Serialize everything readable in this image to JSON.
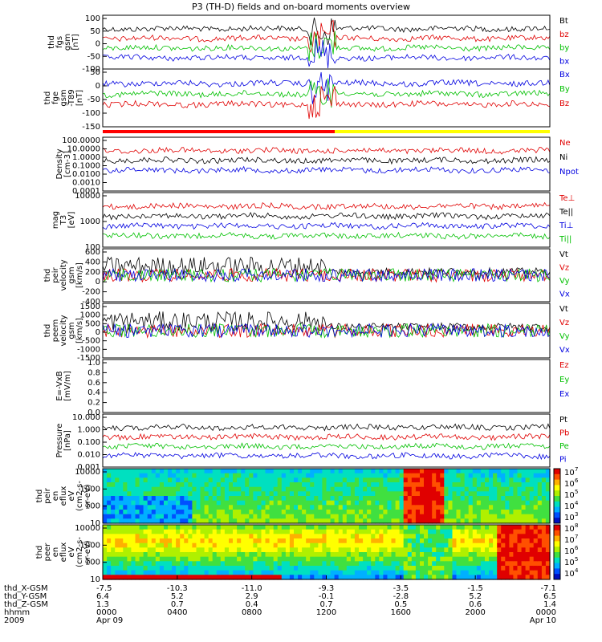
{
  "title": "P3 (TH-D) fields and on-board moments overview",
  "chart_data": {
    "type": "line",
    "x_axis": {
      "ticks": [
        {
          "time": "00:00",
          "x_gsm": "-7.5",
          "y_gsm": "6.4",
          "z_gsm": "1.3",
          "hhmm": "0000",
          "date": "Apr 09"
        },
        {
          "time": "04:00",
          "x_gsm": "-10.3",
          "y_gsm": "5.2",
          "z_gsm": "0.7",
          "hhmm": "0400",
          "date": ""
        },
        {
          "time": "08:00",
          "x_gsm": "-11.0",
          "y_gsm": "2.9",
          "z_gsm": "0.4",
          "hhmm": "0800",
          "date": ""
        },
        {
          "time": "12:00",
          "x_gsm": "-9.3",
          "y_gsm": "-0.1",
          "z_gsm": "0.7",
          "hhmm": "1200",
          "date": ""
        },
        {
          "time": "16:00",
          "x_gsm": "-3.5",
          "y_gsm": "-2.8",
          "z_gsm": "0.5",
          "hhmm": "1600",
          "date": ""
        },
        {
          "time": "20:00",
          "x_gsm": "-1.5",
          "y_gsm": "5.2",
          "z_gsm": "0.6",
          "hhmm": "2000",
          "date": ""
        },
        {
          "time": "24:00",
          "x_gsm": "-7.1",
          "y_gsm": "6.5",
          "z_gsm": "1.4",
          "hhmm": "0000",
          "date": "Apr 10"
        }
      ],
      "row_labels": [
        "thd_X-GSM",
        "thd_Y-GSM",
        "thd_Z-GSM",
        "hhmm",
        "2009"
      ]
    },
    "panels": [
      {
        "id": "fgs",
        "ylabel": [
          "thd",
          "fgs",
          "gsm",
          "[nT]"
        ],
        "yticks": [
          "100",
          "50",
          "0",
          "-50",
          "-100"
        ],
        "ylim": [
          -100,
          100
        ],
        "series": [
          {
            "name": "Bt",
            "color": "#000000"
          },
          {
            "name": "bz",
            "color": "#e00000"
          },
          {
            "name": "by",
            "color": "#00c000"
          },
          {
            "name": "bx",
            "color": "#0000e0"
          }
        ]
      },
      {
        "id": "fge",
        "ylabel": [
          "thd",
          "fge",
          "gsm",
          "-T89",
          "[nT]"
        ],
        "yticks": [
          "50",
          "0",
          "-50",
          "-100",
          "-150"
        ],
        "ylim": [
          -175,
          75
        ],
        "series": [
          {
            "name": "Bx",
            "color": "#0000e0"
          },
          {
            "name": "By",
            "color": "#00c000"
          },
          {
            "name": "Bz",
            "color": "#e00000"
          }
        ]
      },
      {
        "id": "density",
        "ylabel": [
          "Density",
          "[cm-3]"
        ],
        "yticks": [
          "100.0000",
          "10.0000",
          "1.0000",
          "0.1000",
          "0.0100",
          "0.0010",
          "0.0001"
        ],
        "scale": "log",
        "series": [
          {
            "name": "Ne",
            "color": "#e00000"
          },
          {
            "name": "Ni",
            "color": "#000000"
          },
          {
            "name": "Npot",
            "color": "#0000e0"
          }
        ]
      },
      {
        "id": "temp",
        "ylabel": [
          "mag",
          "T3",
          "[eV]"
        ],
        "yticks": [
          "10000",
          "1000",
          "100"
        ],
        "scale": "log",
        "series": [
          {
            "name": "Te⊥",
            "color": "#e00000"
          },
          {
            "name": "Te||",
            "color": "#000000"
          },
          {
            "name": "Ti⊥",
            "color": "#0000e0"
          },
          {
            "name": "Ti||",
            "color": "#00c000"
          }
        ]
      },
      {
        "id": "peir_vel",
        "ylabel": [
          "thd",
          "peir",
          "velocity",
          "gsm",
          "[km/s]"
        ],
        "yticks": [
          "600",
          "400",
          "200",
          "0",
          "-200",
          "-400"
        ],
        "ylim": [
          -400,
          600
        ],
        "series": [
          {
            "name": "Vt",
            "color": "#000000"
          },
          {
            "name": "Vz",
            "color": "#e00000"
          },
          {
            "name": "Vy",
            "color": "#00c000"
          },
          {
            "name": "Vx",
            "color": "#0000e0"
          }
        ]
      },
      {
        "id": "peem_vel",
        "ylabel": [
          "thd",
          "peem",
          "velocity",
          "gsm",
          "[km/s]"
        ],
        "yticks": [
          "1500",
          "1000",
          "500",
          "0",
          "-500",
          "-1000",
          "-1500"
        ],
        "ylim": [
          -1500,
          1500
        ],
        "series": [
          {
            "name": "Vt",
            "color": "#000000"
          },
          {
            "name": "Vz",
            "color": "#e00000"
          },
          {
            "name": "Vy",
            "color": "#00c000"
          },
          {
            "name": "Vx",
            "color": "#0000e0"
          }
        ]
      },
      {
        "id": "efield",
        "ylabel": [
          "E=-VxB",
          "[mV/m]"
        ],
        "yticks": [
          "1.0",
          "0.8",
          "0.6",
          "0.4",
          "0.2",
          "0.0"
        ],
        "ylim": [
          0,
          1
        ],
        "series": [
          {
            "name": "Ez",
            "color": "#e00000"
          },
          {
            "name": "Ey",
            "color": "#00c000"
          },
          {
            "name": "Ex",
            "color": "#0000e0"
          }
        ]
      },
      {
        "id": "pressure",
        "ylabel": [
          "Pressure",
          "[nPa]"
        ],
        "yticks": [
          "10.000",
          "1.000",
          "0.100",
          "0.010",
          "0.001"
        ],
        "scale": "log",
        "series": [
          {
            "name": "Pt",
            "color": "#000000"
          },
          {
            "name": "Pb",
            "color": "#e00000"
          },
          {
            "name": "Pe",
            "color": "#00c000"
          },
          {
            "name": "Pi",
            "color": "#0000e0"
          }
        ]
      },
      {
        "id": "peir_spec",
        "type": "heatmap",
        "ylabel": [
          "thd",
          "peir",
          "en",
          "eflux",
          "eV",
          "(cm2-s-",
          "sr-eV)"
        ],
        "yticks": [
          "10000",
          "1000",
          "100",
          "10"
        ],
        "colorbar": [
          "10",
          "10",
          "10",
          "10",
          "10"
        ],
        "colorbar_exp": [
          "7",
          "6",
          "5",
          "4",
          "3"
        ]
      },
      {
        "id": "peer_spec",
        "type": "heatmap",
        "ylabel": [
          "thd",
          "peer",
          "en",
          "eflux",
          "eV",
          "(cm2-s-",
          "sr-eV)"
        ],
        "yticks": [
          "10000",
          "1000",
          "100",
          "10"
        ],
        "colorbar": [
          "10",
          "10",
          "10",
          "10",
          "10"
        ],
        "colorbar_exp": [
          "8",
          "7",
          "6",
          "5",
          "4"
        ]
      }
    ]
  }
}
